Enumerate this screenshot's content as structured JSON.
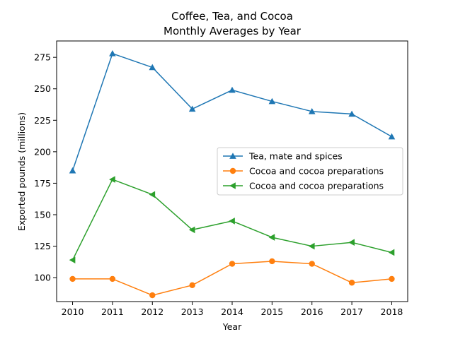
{
  "chart_data": {
    "type": "line",
    "title": "Coffee, Tea, and Cocoa",
    "subtitle": "Monthly Averages by Year",
    "xlabel": "Year",
    "ylabel": "Exported pounds (millions)",
    "x": [
      2010,
      2011,
      2012,
      2013,
      2014,
      2015,
      2016,
      2017,
      2018
    ],
    "xlim": [
      2009.6,
      2018.4
    ],
    "ylim": [
      81,
      288
    ],
    "yticks": [
      100,
      125,
      150,
      175,
      200,
      225,
      250,
      275
    ],
    "grid": false,
    "legend_position": "center-right",
    "series": [
      {
        "name": "Tea, mate and spices",
        "color": "#1f77b4",
        "marker": "triangle-up",
        "values": [
          185,
          278,
          267,
          234,
          249,
          240,
          232,
          230,
          212
        ]
      },
      {
        "name": "Cocoa and cocoa preparations",
        "color": "#ff7f0e",
        "marker": "circle",
        "values": [
          99,
          99,
          86,
          94,
          111,
          113,
          111,
          96,
          99
        ]
      },
      {
        "name": "Cocoa and cocoa preparations",
        "color": "#2ca02c",
        "marker": "triangle-left",
        "values": [
          114,
          178,
          166,
          138,
          145,
          132,
          125,
          128,
          120
        ]
      }
    ]
  }
}
